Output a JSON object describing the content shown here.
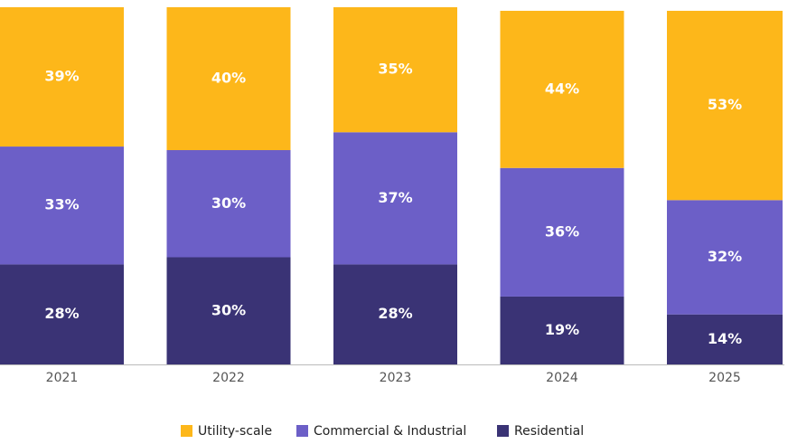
{
  "chart_data": {
    "type": "stacked_bar",
    "categories": [
      "2021",
      "2022",
      "2023",
      "2024",
      "2025"
    ],
    "series": [
      {
        "name": "Utility-scale",
        "color": "#fdb71a",
        "values": [
          39,
          40,
          35,
          44,
          53
        ],
        "value_labels": [
          "39%",
          "40%",
          "35%",
          "44%",
          "53%"
        ]
      },
      {
        "name": "Commercial & Industrial",
        "color": "#6c5fc7",
        "values": [
          33,
          30,
          37,
          36,
          32
        ],
        "value_labels": [
          "33%",
          "30%",
          "37%",
          "36%",
          "32%"
        ]
      },
      {
        "name": "Residential",
        "color": "#3a3375",
        "values": [
          28,
          30,
          28,
          19,
          14
        ],
        "value_labels": [
          "28%",
          "30%",
          "28%",
          "19%",
          "14%"
        ]
      }
    ],
    "ylim": [
      0,
      100
    ]
  }
}
